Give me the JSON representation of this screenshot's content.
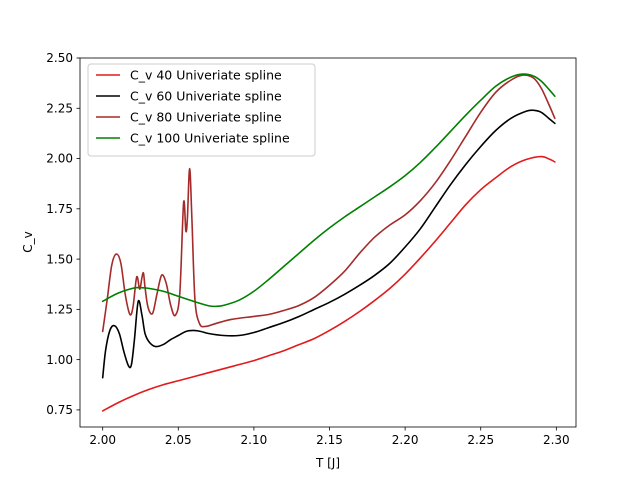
{
  "chart_data": {
    "type": "line",
    "title": "",
    "xlabel": "T [J]",
    "ylabel": "C_v",
    "xlim": [
      1.985,
      2.313
    ],
    "ylim": [
      0.665,
      2.5
    ],
    "x_ticks": [
      2.0,
      2.05,
      2.1,
      2.15,
      2.2,
      2.25,
      2.3
    ],
    "x_tick_labels": [
      "2.00",
      "2.05",
      "2.10",
      "2.15",
      "2.20",
      "2.25",
      "2.30"
    ],
    "y_ticks": [
      0.75,
      1.0,
      1.25,
      1.5,
      1.75,
      2.0,
      2.25,
      2.5
    ],
    "y_tick_labels": [
      "0.75",
      "1.00",
      "1.25",
      "1.50",
      "1.75",
      "2.00",
      "2.25",
      "2.50"
    ],
    "grid": false,
    "legend_position": "top-left",
    "series": [
      {
        "name": "C_v 40 Univeriate spline",
        "color": "#e31a1c",
        "points": [
          [
            2.0,
            0.745
          ],
          [
            2.01,
            0.785
          ],
          [
            2.02,
            0.82
          ],
          [
            2.03,
            0.85
          ],
          [
            2.04,
            0.875
          ],
          [
            2.05,
            0.895
          ],
          [
            2.06,
            0.915
          ],
          [
            2.07,
            0.935
          ],
          [
            2.08,
            0.955
          ],
          [
            2.09,
            0.975
          ],
          [
            2.1,
            0.995
          ],
          [
            2.11,
            1.02
          ],
          [
            2.12,
            1.045
          ],
          [
            2.13,
            1.075
          ],
          [
            2.14,
            1.105
          ],
          [
            2.15,
            1.145
          ],
          [
            2.16,
            1.19
          ],
          [
            2.17,
            1.24
          ],
          [
            2.18,
            1.295
          ],
          [
            2.19,
            1.355
          ],
          [
            2.2,
            1.425
          ],
          [
            2.21,
            1.505
          ],
          [
            2.22,
            1.59
          ],
          [
            2.23,
            1.68
          ],
          [
            2.24,
            1.77
          ],
          [
            2.25,
            1.845
          ],
          [
            2.26,
            1.905
          ],
          [
            2.27,
            1.96
          ],
          [
            2.28,
            1.995
          ],
          [
            2.29,
            2.01
          ],
          [
            2.296,
            1.995
          ],
          [
            2.299,
            1.983
          ]
        ]
      },
      {
        "name": "C_v 60 Univeriate spline",
        "color": "#000000",
        "points": [
          [
            2.0,
            0.91
          ],
          [
            2.002,
            1.05
          ],
          [
            2.005,
            1.15
          ],
          [
            2.008,
            1.168
          ],
          [
            2.011,
            1.13
          ],
          [
            2.014,
            1.04
          ],
          [
            2.017,
            0.97
          ],
          [
            2.019,
            0.975
          ],
          [
            2.021,
            1.1
          ],
          [
            2.0235,
            1.29
          ],
          [
            2.026,
            1.22
          ],
          [
            2.028,
            1.13
          ],
          [
            2.031,
            1.085
          ],
          [
            2.035,
            1.065
          ],
          [
            2.04,
            1.075
          ],
          [
            2.045,
            1.1
          ],
          [
            2.05,
            1.12
          ],
          [
            2.055,
            1.14
          ],
          [
            2.06,
            1.145
          ],
          [
            2.065,
            1.14
          ],
          [
            2.07,
            1.13
          ],
          [
            2.08,
            1.12
          ],
          [
            2.09,
            1.12
          ],
          [
            2.1,
            1.135
          ],
          [
            2.11,
            1.16
          ],
          [
            2.12,
            1.185
          ],
          [
            2.13,
            1.215
          ],
          [
            2.14,
            1.25
          ],
          [
            2.15,
            1.285
          ],
          [
            2.16,
            1.325
          ],
          [
            2.17,
            1.37
          ],
          [
            2.18,
            1.42
          ],
          [
            2.19,
            1.48
          ],
          [
            2.2,
            1.56
          ],
          [
            2.21,
            1.65
          ],
          [
            2.22,
            1.76
          ],
          [
            2.23,
            1.87
          ],
          [
            2.24,
            1.97
          ],
          [
            2.25,
            2.06
          ],
          [
            2.26,
            2.14
          ],
          [
            2.27,
            2.2
          ],
          [
            2.28,
            2.235
          ],
          [
            2.285,
            2.24
          ],
          [
            2.29,
            2.23
          ],
          [
            2.295,
            2.2
          ],
          [
            2.299,
            2.175
          ]
        ]
      },
      {
        "name": "C_v 80 Univeriate spline",
        "color": "#a52a2a",
        "points": [
          [
            2.0,
            1.14
          ],
          [
            2.003,
            1.3
          ],
          [
            2.006,
            1.47
          ],
          [
            2.009,
            1.525
          ],
          [
            2.012,
            1.48
          ],
          [
            2.015,
            1.32
          ],
          [
            2.018,
            1.225
          ],
          [
            2.02,
            1.26
          ],
          [
            2.022,
            1.39
          ],
          [
            2.023,
            1.41
          ],
          [
            2.0245,
            1.35
          ],
          [
            2.026,
            1.41
          ],
          [
            2.027,
            1.43
          ],
          [
            2.028,
            1.36
          ],
          [
            2.03,
            1.26
          ],
          [
            2.033,
            1.23
          ],
          [
            2.036,
            1.33
          ],
          [
            2.039,
            1.42
          ],
          [
            2.042,
            1.38
          ],
          [
            2.045,
            1.27
          ],
          [
            2.048,
            1.22
          ],
          [
            2.051,
            1.33
          ],
          [
            2.0535,
            1.78
          ],
          [
            2.055,
            1.64
          ],
          [
            2.056,
            1.7
          ],
          [
            2.0575,
            1.95
          ],
          [
            2.059,
            1.7
          ],
          [
            2.061,
            1.3
          ],
          [
            2.064,
            1.18
          ],
          [
            2.068,
            1.165
          ],
          [
            2.075,
            1.18
          ],
          [
            2.085,
            1.2
          ],
          [
            2.1,
            1.215
          ],
          [
            2.11,
            1.225
          ],
          [
            2.12,
            1.245
          ],
          [
            2.13,
            1.27
          ],
          [
            2.14,
            1.31
          ],
          [
            2.15,
            1.37
          ],
          [
            2.16,
            1.44
          ],
          [
            2.17,
            1.53
          ],
          [
            2.18,
            1.61
          ],
          [
            2.19,
            1.67
          ],
          [
            2.2,
            1.72
          ],
          [
            2.21,
            1.79
          ],
          [
            2.22,
            1.88
          ],
          [
            2.23,
            1.99
          ],
          [
            2.24,
            2.11
          ],
          [
            2.25,
            2.23
          ],
          [
            2.26,
            2.33
          ],
          [
            2.27,
            2.39
          ],
          [
            2.278,
            2.415
          ],
          [
            2.285,
            2.4
          ],
          [
            2.29,
            2.35
          ],
          [
            2.295,
            2.27
          ],
          [
            2.299,
            2.2
          ]
        ]
      },
      {
        "name": "C_v 100 Univeriate spline",
        "color": "#008000",
        "points": [
          [
            2.0,
            1.29
          ],
          [
            2.01,
            1.33
          ],
          [
            2.02,
            1.355
          ],
          [
            2.025,
            1.358
          ],
          [
            2.03,
            1.355
          ],
          [
            2.04,
            1.34
          ],
          [
            2.05,
            1.315
          ],
          [
            2.06,
            1.29
          ],
          [
            2.07,
            1.268
          ],
          [
            2.075,
            1.265
          ],
          [
            2.08,
            1.27
          ],
          [
            2.09,
            1.295
          ],
          [
            2.1,
            1.34
          ],
          [
            2.11,
            1.4
          ],
          [
            2.12,
            1.465
          ],
          [
            2.13,
            1.53
          ],
          [
            2.14,
            1.595
          ],
          [
            2.15,
            1.655
          ],
          [
            2.16,
            1.71
          ],
          [
            2.17,
            1.76
          ],
          [
            2.18,
            1.81
          ],
          [
            2.19,
            1.86
          ],
          [
            2.2,
            1.915
          ],
          [
            2.21,
            1.98
          ],
          [
            2.22,
            2.055
          ],
          [
            2.23,
            2.135
          ],
          [
            2.24,
            2.215
          ],
          [
            2.25,
            2.29
          ],
          [
            2.26,
            2.36
          ],
          [
            2.27,
            2.405
          ],
          [
            2.278,
            2.42
          ],
          [
            2.285,
            2.41
          ],
          [
            2.29,
            2.385
          ],
          [
            2.295,
            2.345
          ],
          [
            2.299,
            2.31
          ]
        ]
      }
    ]
  }
}
